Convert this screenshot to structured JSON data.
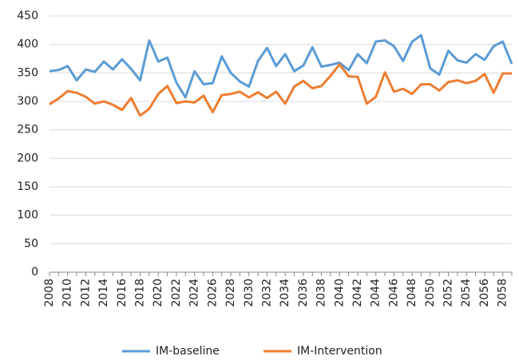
{
  "chart_data": {
    "type": "line",
    "categories": [
      "2008",
      null,
      "2010",
      null,
      "2012",
      null,
      "2014",
      null,
      "2016",
      null,
      "2018",
      null,
      "2020",
      null,
      "2022",
      null,
      "2024",
      null,
      "2026",
      null,
      "2028",
      null,
      "2030",
      null,
      "2032",
      null,
      "2034",
      null,
      "2036",
      null,
      "2038",
      null,
      "2040",
      null,
      "2042",
      null,
      "2044",
      null,
      "2046",
      null,
      "2048",
      null,
      "2050",
      null,
      "2052",
      null,
      "2054",
      null,
      "2056",
      null,
      "2058",
      null
    ],
    "series": [
      {
        "name": "IM-baseline",
        "color": "#5b9bd5",
        "values": [
          353,
          355,
          362,
          337,
          356,
          352,
          370,
          356,
          374,
          357,
          337,
          407,
          370,
          377,
          333,
          307,
          353,
          330,
          332,
          379,
          350,
          335,
          326,
          371,
          394,
          362,
          383,
          353,
          363,
          395,
          361,
          364,
          368,
          355,
          383,
          367,
          405,
          407,
          397,
          371,
          405,
          416,
          358,
          347,
          389,
          372,
          368,
          383,
          373,
          397,
          405,
          366
        ]
      },
      {
        "name": "IM-Intervention",
        "color": "#ed7d31",
        "values": [
          295,
          305,
          318,
          315,
          308,
          296,
          300,
          294,
          285,
          306,
          275,
          287,
          313,
          327,
          297,
          300,
          298,
          310,
          281,
          311,
          313,
          317,
          307,
          316,
          306,
          317,
          296,
          326,
          336,
          323,
          327,
          345,
          365,
          344,
          343,
          296,
          308,
          351,
          317,
          322,
          313,
          330,
          330,
          319,
          334,
          337,
          332,
          336,
          348,
          315,
          349,
          349
        ]
      }
    ],
    "ylim": [
      0,
      450
    ],
    "yticks": [
      0,
      50,
      100,
      150,
      200,
      250,
      300,
      350,
      400,
      450
    ],
    "grid": true,
    "legend": "bottom"
  }
}
